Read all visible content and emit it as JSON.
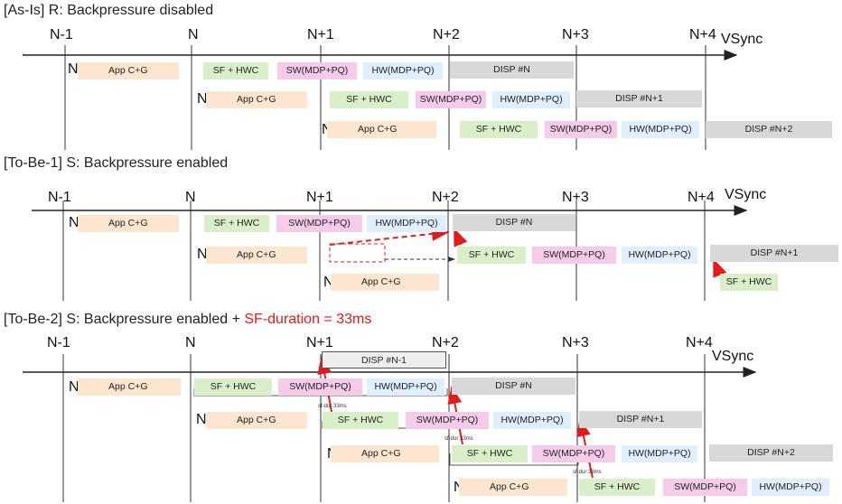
{
  "sections": [
    {
      "title": "[As-Is] R: Backpressure disabled",
      "title_suffix": ""
    },
    {
      "title": "[To-Be-1] S: Backpressure enabled",
      "title_suffix": ""
    },
    {
      "title": "[To-Be-2] S: Backpressure enabled + ",
      "title_suffix": "SF-duration = 33ms"
    }
  ],
  "ticks": [
    "N-1",
    "N",
    "N+1",
    "N+2",
    "N+3",
    "N+4"
  ],
  "vsync_label": "VSync",
  "frames": [
    "N",
    "N+1",
    "N+2",
    "N+3"
  ],
  "labels": {
    "app": "App C+G",
    "sf": "SF + HWC",
    "sw": "SW(MDP+PQ)",
    "hw": "HW(MDP+PQ)",
    "disp_n_minus_1": "DISP #N-1",
    "disp_n": "DISP #N",
    "disp_n1": "DISP #N+1",
    "disp_n2": "DISP #N+2",
    "sf_dur": "sf-dur 33ms"
  },
  "colors": {
    "app": "#fde6cf",
    "sf": "#d9efc9",
    "sw": "#f6cbe9",
    "hw": "#dfefff",
    "disp": "#d8d8d8",
    "arrow": "#e21c1c"
  }
}
